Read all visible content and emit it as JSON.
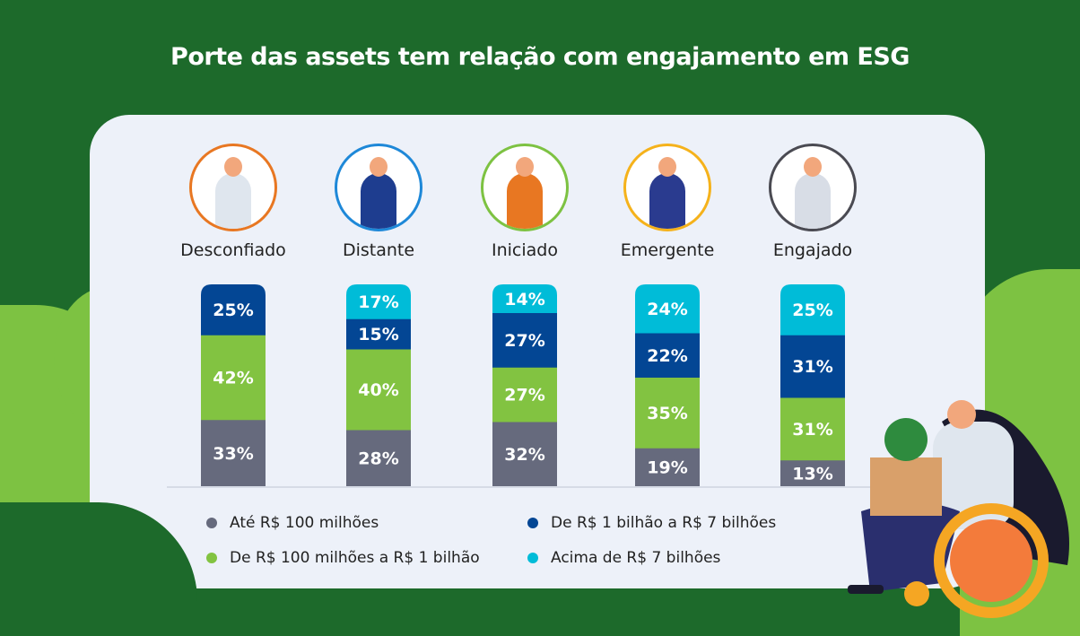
{
  "title": "Porte das assets tem relação com engajamento em ESG",
  "colors": {
    "background": "#1d6a2b",
    "card": "#edf1f9"
  },
  "chart_data": {
    "type": "bar",
    "stacked": true,
    "normalized": true,
    "title": "Porte das assets tem relação com engajamento em ESG",
    "categories": [
      "Desconfiado",
      "Distante",
      "Iniciado",
      "Emergente",
      "Engajado"
    ],
    "series": [
      {
        "name": "Até R$ 100 milhões",
        "color": "#666a7d",
        "values": [
          33,
          28,
          32,
          19,
          13
        ]
      },
      {
        "name": "De R$ 100 milhões a R$ 1 bilhão",
        "color": "#82c341",
        "values": [
          42,
          40,
          27,
          35,
          31
        ]
      },
      {
        "name": "De R$ 1 bilhão a R$ 7 bilhões",
        "color": "#034694",
        "values": [
          25,
          15,
          27,
          22,
          31
        ]
      },
      {
        "name": "Acima de R$ 7 bilhões",
        "color": "#00bcd8",
        "values": [
          0,
          17,
          14,
          24,
          25
        ]
      }
    ],
    "value_suffix": "%",
    "legend_position": "bottom",
    "grid": false
  },
  "personas": [
    {
      "label": "Desconfiado",
      "ring": "#e87722",
      "figure": "#dfe6ee"
    },
    {
      "label": "Distante",
      "ring": "#1e88d8",
      "figure": "#1e3d8f"
    },
    {
      "label": "Iniciado",
      "ring": "#7dc242",
      "figure": "#e87722"
    },
    {
      "label": "Emergente",
      "ring": "#f5b21b",
      "figure": "#2a3b8f"
    },
    {
      "label": "Engajado",
      "ring": "#4a4a52",
      "figure": "#d8dde6"
    }
  ]
}
